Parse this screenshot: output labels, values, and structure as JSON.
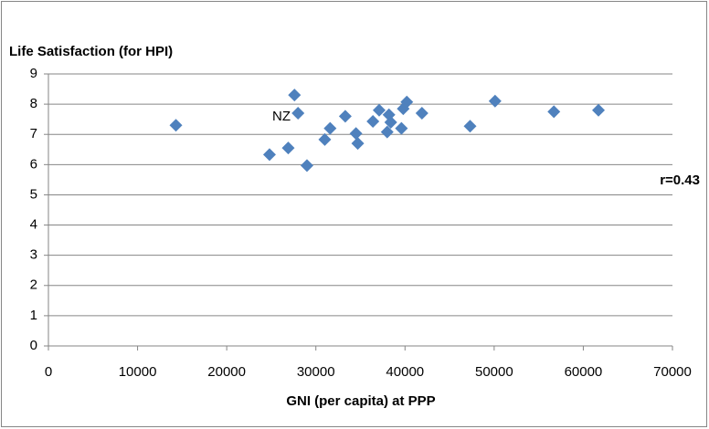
{
  "chart_data": {
    "type": "scatter",
    "y_axis_title": "Life Satisfaction (for HPI)",
    "x_axis_title": "GNI (per capita) at PPP",
    "annotations": [
      "NZ",
      "r=0.43"
    ],
    "series": [
      {
        "color": "#4f81bd",
        "x": [
          14300,
          24800,
          26900,
          27600,
          28000,
          29000,
          31000,
          31600,
          33300,
          34500,
          34700,
          36400,
          37100,
          38000,
          38200,
          38400,
          39600,
          39800,
          40200,
          41900,
          47300,
          50100,
          56700,
          61700
        ],
        "values": [
          7.3,
          6.33,
          6.55,
          8.3,
          7.7,
          5.97,
          6.83,
          7.2,
          7.6,
          7.03,
          6.7,
          7.43,
          7.8,
          7.08,
          7.65,
          7.4,
          7.2,
          7.85,
          8.07,
          7.7,
          7.27,
          8.1,
          7.75,
          7.8
        ]
      }
    ],
    "xlim": [
      0,
      70000
    ],
    "xticks": [
      0,
      10000,
      20000,
      30000,
      40000,
      50000,
      60000,
      70000
    ],
    "ylim": [
      0,
      9
    ],
    "yticks": [
      0,
      1,
      2,
      3,
      4,
      5,
      6,
      7,
      8,
      9
    ],
    "grid": true
  }
}
